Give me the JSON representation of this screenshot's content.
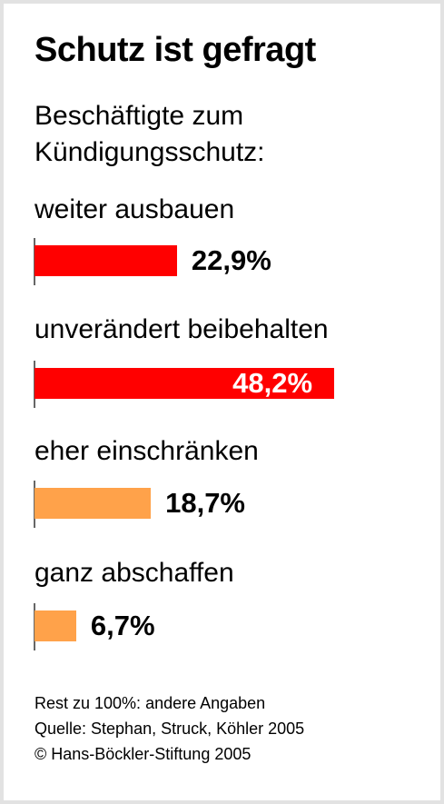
{
  "chart_data": {
    "type": "bar",
    "orientation": "horizontal",
    "title": "Schutz ist gefragt",
    "subtitle_lines": [
      "Beschäftigte zum",
      "Kündigungsschutz:"
    ],
    "categories": [
      "weiter ausbauen",
      "unverändert beibehalten",
      "eher  einschränken",
      "ganz abschaffen"
    ],
    "values": [
      22.9,
      48.2,
      18.7,
      6.7
    ],
    "value_labels": [
      "22,9%",
      "48,2%",
      "18,7%",
      "6,7%"
    ],
    "bar_colors": [
      "#ff0000",
      "#ff0000",
      "#ffa24a",
      "#ffa24a"
    ],
    "xlim": [
      0,
      100
    ],
    "grid": false
  },
  "footnotes": [
    "Rest zu 100%: andere Angaben",
    "Quelle: Stephan, Struck, Köhler 2005",
    "© Hans-Böckler-Stiftung 2005"
  ],
  "colors": {
    "axis": "#666666",
    "frame": "#e2e2e2"
  }
}
